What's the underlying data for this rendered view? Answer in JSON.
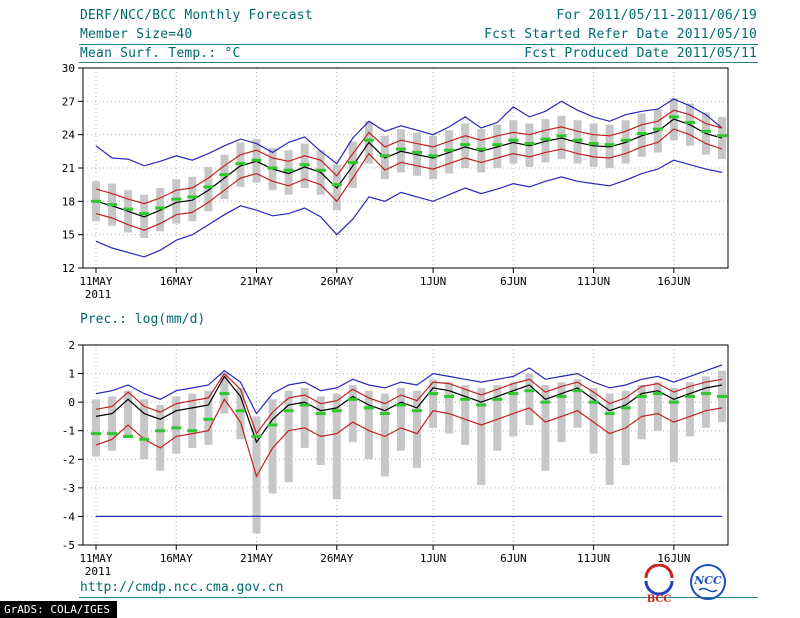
{
  "header": {
    "title": "DERF/NCC/BCC Monthly Forecast",
    "date_range": "For 2011/05/11-2011/06/19",
    "member_size": "Member Size=40",
    "refer_date": "Fcst Started Refer Date 2011/05/10",
    "produced_date": "Fcst Produced Date 2011/05/11"
  },
  "panel_labels": {
    "temp": "Mean Surf. Temp.: °C",
    "prec": "Prec.: log(mm/d)"
  },
  "footer": {
    "url": "http://cmdp.ncc.cma.gov.cn",
    "grads_credit": "GrADS: COLA/IGES",
    "bcc_logo_label": "BCC",
    "ncc_logo_label": "NCC"
  },
  "colors": {
    "header_text": "#006a6e",
    "ensemble_max_min": "#2828bb",
    "mean_plus_minus_std": "#c42222",
    "ensemble_mean": "#000000",
    "observation_dashes": "#2ec82e",
    "spread_bar": "#c7c7c7"
  },
  "chart_data": [
    {
      "type": "line",
      "title": "Mean Surf. Temp.: °C",
      "xlabel": "",
      "ylabel": "Mean Surf. Temp. (°C)",
      "ylim": [
        12,
        30
      ],
      "yticks": [
        12,
        15,
        18,
        21,
        24,
        27,
        30
      ],
      "x_days": 40,
      "xticks": [
        {
          "day": 0,
          "label": "11MAY"
        },
        {
          "day": 5,
          "label": "16MAY"
        },
        {
          "day": 10,
          "label": "21MAY"
        },
        {
          "day": 15,
          "label": "26MAY"
        },
        {
          "day": 21,
          "label": "1JUN"
        },
        {
          "day": 26,
          "label": "6JUN"
        },
        {
          "day": 31,
          "label": "11JUN"
        },
        {
          "day": 36,
          "label": "16JUN"
        }
      ],
      "year_label": "2011",
      "grid": true,
      "series": [
        {
          "name": "ensemble-max",
          "color": "#2828bb",
          "values": [
            23.0,
            21.9,
            21.8,
            21.2,
            21.6,
            22.1,
            21.7,
            22.3,
            23.0,
            23.6,
            23.2,
            22.4,
            23.3,
            23.8,
            22.5,
            21.4,
            23.7,
            25.2,
            24.3,
            24.8,
            24.4,
            24.0,
            24.7,
            25.6,
            24.6,
            25.1,
            26.5,
            25.6,
            26.1,
            27.0,
            26.2,
            25.6,
            25.2,
            25.8,
            26.1,
            26.3,
            27.2,
            26.6,
            25.8,
            24.6
          ]
        },
        {
          "name": "mean-plus-std",
          "color": "#c42222",
          "values": [
            19.1,
            18.7,
            18.2,
            17.8,
            18.3,
            19.0,
            19.2,
            20.1,
            21.2,
            22.2,
            22.6,
            21.9,
            21.6,
            22.1,
            21.7,
            20.3,
            22.3,
            24.2,
            22.9,
            23.5,
            23.2,
            22.9,
            23.4,
            23.9,
            23.5,
            23.9,
            24.2,
            24.0,
            24.4,
            24.7,
            24.3,
            24.0,
            23.9,
            24.3,
            24.9,
            25.2,
            26.2,
            25.8,
            25.0,
            24.6
          ]
        },
        {
          "name": "mean-minus-std",
          "color": "#c42222",
          "values": [
            16.9,
            16.5,
            15.9,
            15.4,
            16.0,
            16.8,
            17.0,
            17.9,
            19.0,
            20.1,
            20.5,
            19.8,
            19.4,
            20.0,
            19.5,
            18.0,
            20.1,
            22.3,
            20.8,
            21.5,
            21.2,
            20.9,
            21.4,
            21.9,
            21.5,
            21.9,
            22.3,
            22.0,
            22.4,
            22.7,
            22.3,
            22.0,
            21.9,
            22.3,
            22.9,
            23.3,
            24.5,
            24.0,
            23.2,
            22.7
          ]
        },
        {
          "name": "ensemble-min",
          "color": "#2828bb",
          "values": [
            14.4,
            13.8,
            13.4,
            13.0,
            13.6,
            14.5,
            15.0,
            15.9,
            16.8,
            17.6,
            17.2,
            16.7,
            16.9,
            17.4,
            16.6,
            15.0,
            16.4,
            18.4,
            18.0,
            18.8,
            18.4,
            18.0,
            18.6,
            19.2,
            18.7,
            19.1,
            19.6,
            19.3,
            19.8,
            20.2,
            19.8,
            19.6,
            19.4,
            19.9,
            20.5,
            20.9,
            21.7,
            21.3,
            20.9,
            20.6
          ]
        },
        {
          "name": "ensemble-mean",
          "color": "#000000",
          "values": [
            18.0,
            17.6,
            17.1,
            16.6,
            17.2,
            17.9,
            18.1,
            19.0,
            20.1,
            21.2,
            21.6,
            20.9,
            20.5,
            21.1,
            20.6,
            19.2,
            21.2,
            23.3,
            21.9,
            22.5,
            22.2,
            21.9,
            22.4,
            22.9,
            22.5,
            22.9,
            23.3,
            23.0,
            23.4,
            23.7,
            23.3,
            23.0,
            22.9,
            23.3,
            23.9,
            24.3,
            25.4,
            24.9,
            24.1,
            23.7
          ]
        }
      ],
      "green_dashes": {
        "name": "observation-dashes",
        "color": "#2ec82e",
        "values": [
          18.0,
          17.7,
          17.3,
          16.9,
          17.4,
          18.2,
          18.4,
          19.3,
          20.4,
          21.4,
          21.7,
          21.0,
          20.8,
          21.3,
          20.8,
          19.5,
          21.5,
          23.5,
          22.1,
          22.7,
          22.4,
          22.1,
          22.6,
          23.1,
          22.7,
          23.1,
          23.5,
          23.2,
          23.6,
          23.9,
          23.5,
          23.2,
          23.1,
          23.5,
          24.1,
          24.5,
          25.6,
          25.1,
          24.3,
          23.9
        ]
      },
      "bars": {
        "name": "ensemble-spread",
        "color": "#c7c7c7",
        "high": [
          19.8,
          19.6,
          19.0,
          18.6,
          19.2,
          20.0,
          20.2,
          21.1,
          22.2,
          23.3,
          23.6,
          22.8,
          22.6,
          23.2,
          22.6,
          21.3,
          23.4,
          25.2,
          23.9,
          24.5,
          24.2,
          23.9,
          24.4,
          25.0,
          24.5,
          24.9,
          25.3,
          25.0,
          25.4,
          25.7,
          25.3,
          25.0,
          24.9,
          25.3,
          25.9,
          26.3,
          27.3,
          26.8,
          26.0,
          25.6
        ],
        "low": [
          16.2,
          15.8,
          15.2,
          14.7,
          15.3,
          16.0,
          16.2,
          17.1,
          18.2,
          19.3,
          19.7,
          19.0,
          18.6,
          19.2,
          18.6,
          17.2,
          19.2,
          21.4,
          20.0,
          20.6,
          20.3,
          20.0,
          20.5,
          21.0,
          20.6,
          21.0,
          21.4,
          21.1,
          21.5,
          21.8,
          21.4,
          21.1,
          21.0,
          21.4,
          22.0,
          22.4,
          23.5,
          23.0,
          22.2,
          21.8
        ]
      }
    },
    {
      "type": "line",
      "title": "Prec.: log(mm/d)",
      "xlabel": "",
      "ylabel": "Precipitation log(mm/d)",
      "ylim": [
        -5,
        2
      ],
      "yticks": [
        -5,
        -4,
        -3,
        -2,
        -1,
        0,
        1,
        2
      ],
      "x_days": 40,
      "xticks": [
        {
          "day": 0,
          "label": "11MAY"
        },
        {
          "day": 5,
          "label": "16MAY"
        },
        {
          "day": 10,
          "label": "21MAY"
        },
        {
          "day": 15,
          "label": "26MAY"
        },
        {
          "day": 21,
          "label": "1JUN"
        },
        {
          "day": 26,
          "label": "6JUN"
        },
        {
          "day": 31,
          "label": "11JUN"
        },
        {
          "day": 36,
          "label": "16JUN"
        }
      ],
      "year_label": "2011",
      "grid": true,
      "series": [
        {
          "name": "ensemble-max",
          "color": "#2828bb",
          "values": [
            0.3,
            0.4,
            0.6,
            0.3,
            0.1,
            0.4,
            0.5,
            0.6,
            1.1,
            0.7,
            -0.4,
            0.3,
            0.6,
            0.7,
            0.4,
            0.5,
            0.8,
            0.6,
            0.5,
            0.7,
            0.6,
            1.0,
            0.9,
            0.8,
            0.7,
            0.8,
            0.9,
            1.2,
            0.8,
            0.9,
            1.0,
            0.7,
            0.5,
            0.6,
            0.8,
            0.9,
            0.7,
            0.9,
            1.1,
            1.3
          ]
        },
        {
          "name": "mean-plus-std",
          "color": "#c42222",
          "values": [
            -0.25,
            -0.15,
            0.35,
            -0.15,
            -0.35,
            -0.05,
            0.05,
            0.15,
            1.0,
            0.45,
            -1.1,
            -0.35,
            0.15,
            0.25,
            -0.05,
            0.05,
            0.45,
            0.15,
            -0.05,
            0.25,
            0.05,
            0.7,
            0.65,
            0.45,
            0.25,
            0.45,
            0.65,
            0.8,
            0.35,
            0.55,
            0.7,
            0.35,
            -0.05,
            0.15,
            0.55,
            0.65,
            0.35,
            0.55,
            0.7,
            0.8
          ]
        },
        {
          "name": "mean-minus-std",
          "color": "#c42222",
          "values": [
            -1.5,
            -1.3,
            -0.8,
            -1.3,
            -1.6,
            -1.2,
            -1.1,
            -1.0,
            0.1,
            -0.7,
            -2.6,
            -1.6,
            -1.0,
            -0.9,
            -1.2,
            -1.1,
            -0.7,
            -1.0,
            -1.2,
            -0.9,
            -1.1,
            -0.3,
            -0.4,
            -0.6,
            -0.8,
            -0.6,
            -0.4,
            -0.2,
            -0.7,
            -0.5,
            -0.3,
            -0.7,
            -1.1,
            -0.9,
            -0.5,
            -0.4,
            -0.7,
            -0.5,
            -0.3,
            -0.2
          ]
        },
        {
          "name": "ensemble-min",
          "color": "#2828bb",
          "values": [
            -4.0,
            -4.0,
            -4.0,
            -4.0,
            -4.0,
            -4.0,
            -4.0,
            -4.0,
            -4.0,
            -4.0,
            -4.0,
            -4.0,
            -4.0,
            -4.0,
            -4.0,
            -4.0,
            -4.0,
            -4.0,
            -4.0,
            -4.0,
            -4.0,
            -4.0,
            -4.0,
            -4.0,
            -4.0,
            -4.0,
            -4.0,
            -4.0,
            -4.0,
            -4.0,
            -4.0,
            -4.0,
            -4.0,
            -4.0,
            -4.0,
            -4.0,
            -4.0,
            -4.0,
            -4.0,
            -4.0
          ]
        },
        {
          "name": "ensemble-mean",
          "color": "#000000",
          "values": [
            -0.5,
            -0.4,
            0.1,
            -0.4,
            -0.6,
            -0.3,
            -0.2,
            -0.1,
            0.9,
            0.2,
            -1.4,
            -0.6,
            -0.1,
            0.0,
            -0.3,
            -0.2,
            0.2,
            -0.1,
            -0.3,
            0.0,
            -0.2,
            0.5,
            0.4,
            0.2,
            0.0,
            0.2,
            0.4,
            0.6,
            0.1,
            0.3,
            0.5,
            0.1,
            -0.3,
            -0.1,
            0.3,
            0.4,
            0.1,
            0.3,
            0.5,
            0.6
          ]
        }
      ],
      "green_dashes": {
        "name": "observation-dashes",
        "color": "#2ec82e",
        "values": [
          -1.1,
          -1.1,
          -1.2,
          -1.3,
          -1.0,
          -0.9,
          -1.0,
          -0.6,
          0.3,
          -0.3,
          -1.2,
          -0.8,
          -0.3,
          -0.1,
          -0.4,
          -0.3,
          0.1,
          -0.2,
          -0.4,
          -0.1,
          -0.3,
          0.3,
          0.2,
          0.1,
          -0.1,
          0.1,
          0.3,
          0.4,
          0.0,
          0.2,
          0.4,
          0.0,
          -0.4,
          -0.2,
          0.2,
          0.3,
          0.0,
          0.2,
          0.3,
          0.2
        ]
      },
      "bars": {
        "name": "ensemble-spread",
        "color": "#c7c7c7",
        "high": [
          0.1,
          0.2,
          0.4,
          0.1,
          -0.1,
          0.2,
          0.3,
          0.4,
          1.0,
          0.5,
          -0.5,
          0.1,
          0.4,
          0.5,
          0.2,
          0.3,
          0.6,
          0.4,
          0.3,
          0.5,
          0.4,
          0.8,
          0.7,
          0.6,
          0.5,
          0.6,
          0.7,
          1.0,
          0.6,
          0.7,
          0.8,
          0.5,
          0.3,
          0.4,
          0.6,
          0.7,
          0.5,
          0.7,
          0.9,
          1.1
        ],
        "low": [
          -1.9,
          -1.7,
          -1.2,
          -2.0,
          -2.4,
          -1.8,
          -1.6,
          -1.5,
          -0.4,
          -1.3,
          -4.6,
          -3.2,
          -2.8,
          -1.6,
          -2.2,
          -3.4,
          -1.4,
          -2.0,
          -2.6,
          -1.7,
          -2.3,
          -0.9,
          -1.1,
          -1.5,
          -2.9,
          -1.7,
          -1.2,
          -0.8,
          -2.4,
          -1.4,
          -0.9,
          -1.8,
          -2.9,
          -2.2,
          -1.3,
          -1.0,
          -2.1,
          -1.2,
          -0.9,
          -0.7
        ]
      }
    }
  ]
}
